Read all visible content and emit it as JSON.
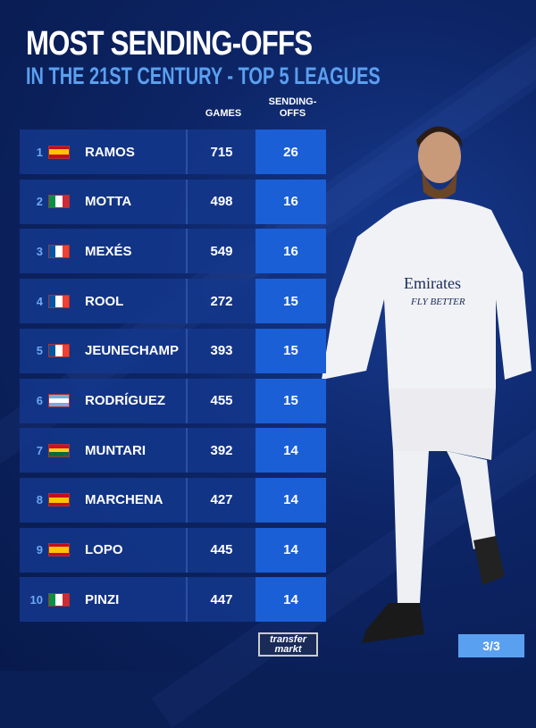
{
  "title": "MOST SENDING-OFFS",
  "subtitle": "IN THE 21ST CENTURY - TOP 5 LEAGUES",
  "columns": {
    "games": "GAMES",
    "sendoffs_1": "SENDING-",
    "sendoffs_2": "OFFS"
  },
  "rows": [
    {
      "rank": "1",
      "name": "RAMOS",
      "country": "Spain",
      "flag": [
        "#c60b1e",
        "#ffc400",
        "#c60b1e"
      ],
      "flag_dir": "h",
      "games": "715",
      "sendoffs": "26"
    },
    {
      "rank": "2",
      "name": "MOTTA",
      "country": "Italy",
      "flag": [
        "#009246",
        "#ffffff",
        "#ce2b37"
      ],
      "flag_dir": "v",
      "games": "498",
      "sendoffs": "16"
    },
    {
      "rank": "3",
      "name": "MEXÉS",
      "country": "France",
      "flag": [
        "#0055a4",
        "#ffffff",
        "#ef4135"
      ],
      "flag_dir": "v",
      "games": "549",
      "sendoffs": "16"
    },
    {
      "rank": "4",
      "name": "ROOL",
      "country": "France",
      "flag": [
        "#0055a4",
        "#ffffff",
        "#ef4135"
      ],
      "flag_dir": "v",
      "games": "272",
      "sendoffs": "15"
    },
    {
      "rank": "5",
      "name": "JEUNECHAMP",
      "country": "France",
      "flag": [
        "#0055a4",
        "#ffffff",
        "#ef4135"
      ],
      "flag_dir": "v",
      "games": "393",
      "sendoffs": "15"
    },
    {
      "rank": "6",
      "name": "RODRÍGUEZ",
      "country": "Argentina",
      "flag": [
        "#74acdf",
        "#ffffff",
        "#74acdf"
      ],
      "flag_dir": "h",
      "games": "455",
      "sendoffs": "15"
    },
    {
      "rank": "7",
      "name": "MUNTARI",
      "country": "Ghana",
      "flag": [
        "#ce1126",
        "#fcd116",
        "#006b3f"
      ],
      "flag_dir": "h",
      "games": "392",
      "sendoffs": "14"
    },
    {
      "rank": "8",
      "name": "MARCHENA",
      "country": "Spain",
      "flag": [
        "#c60b1e",
        "#ffc400",
        "#c60b1e"
      ],
      "flag_dir": "h",
      "games": "427",
      "sendoffs": "14"
    },
    {
      "rank": "9",
      "name": "LOPO",
      "country": "Spain",
      "flag": [
        "#c60b1e",
        "#ffc400",
        "#c60b1e"
      ],
      "flag_dir": "h",
      "games": "445",
      "sendoffs": "14"
    },
    {
      "rank": "10",
      "name": "PINZI",
      "country": "Italy",
      "flag": [
        "#009246",
        "#ffffff",
        "#ce2b37"
      ],
      "flag_dir": "v",
      "games": "447",
      "sendoffs": "14"
    }
  ],
  "logo": {
    "line1": "transfer",
    "line2": "markt"
  },
  "page_indicator": "3/3",
  "shirt": {
    "sponsor": "Emirates",
    "tagline": "FLY BETTER"
  }
}
